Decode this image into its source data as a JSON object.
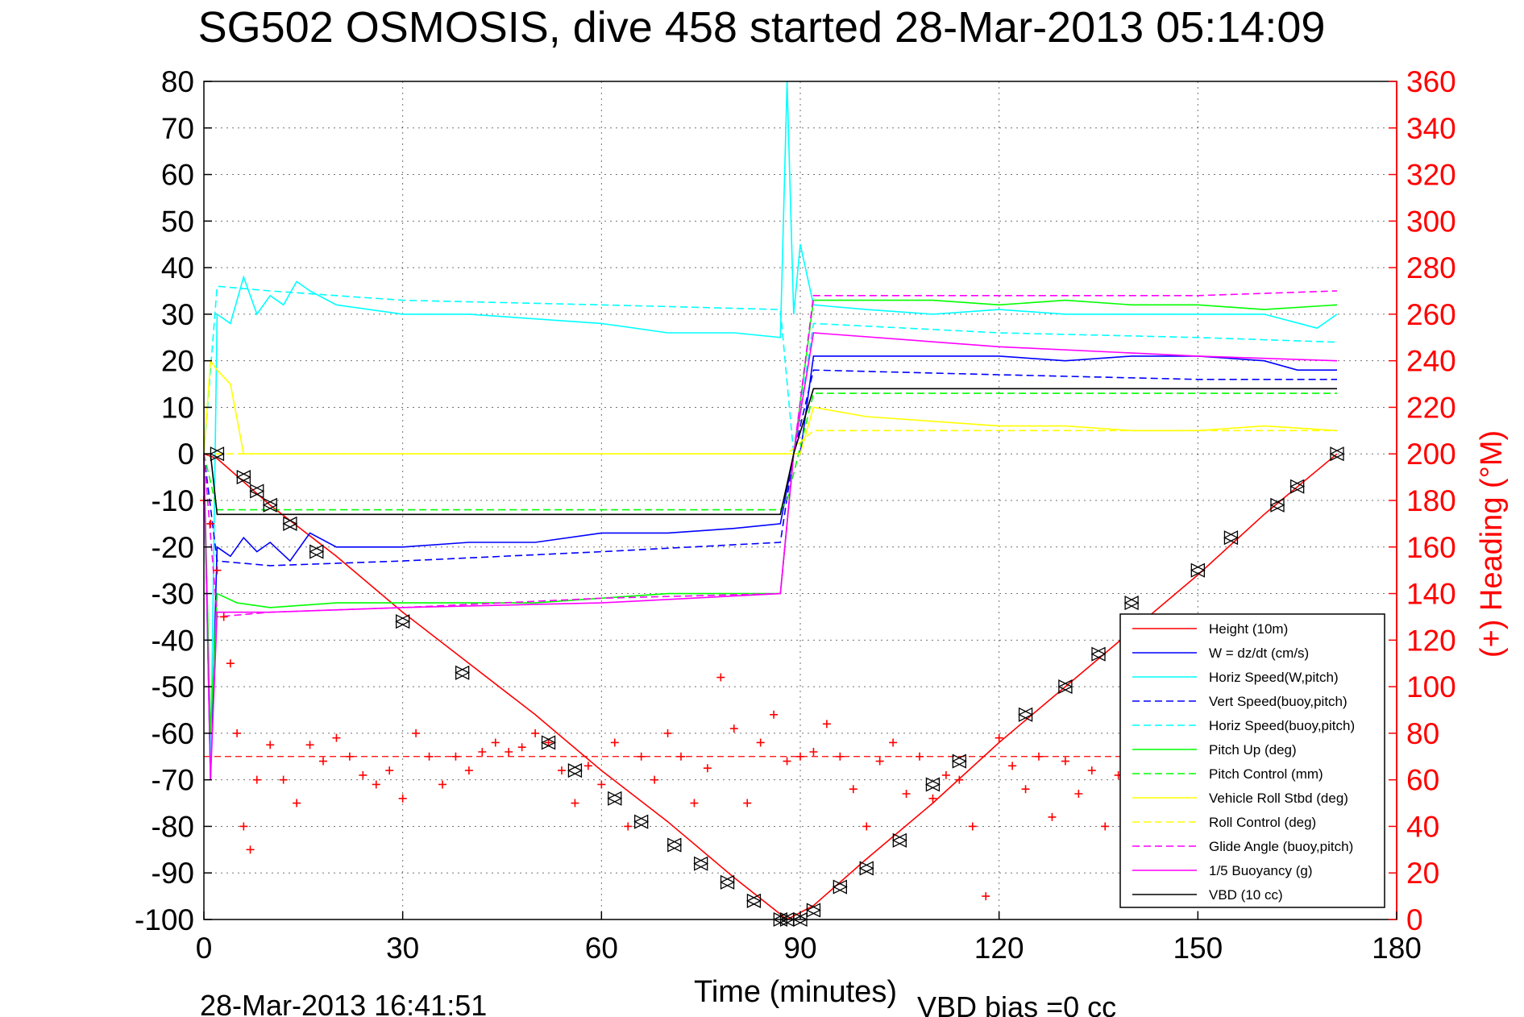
{
  "chart_data": {
    "type": "line",
    "title": "SG502 OSMOSIS, dive 458 started 28-Mar-2013 05:14:09",
    "xlabel": "Time (minutes)",
    "ylabel_right": "(+) Heading (°M)",
    "footer_left": "28-Mar-2013 16:41:51",
    "footer_right": "VBD bias =0 cc",
    "xlim": [
      0,
      180
    ],
    "ylim": [
      -100,
      80
    ],
    "ylim_right": [
      0,
      360
    ],
    "x_ticks": [
      0,
      30,
      60,
      90,
      120,
      150,
      180
    ],
    "y_ticks": [
      80,
      70,
      60,
      50,
      40,
      30,
      20,
      10,
      0,
      -10,
      -20,
      -30,
      -40,
      -50,
      -60,
      -70,
      -80,
      -90,
      -100
    ],
    "y_ticks_right": [
      360,
      340,
      320,
      300,
      280,
      260,
      240,
      220,
      200,
      180,
      160,
      140,
      120,
      100,
      80,
      60,
      40,
      20,
      0
    ],
    "grid": true,
    "legend_position": "lower-right",
    "colors": {
      "red": "#ff0000",
      "blue": "#0000ff",
      "cyan": "#00ffff",
      "green": "#00ff00",
      "yellow": "#ffff00",
      "magenta": "#ff00ff",
      "black": "#000000"
    },
    "series": [
      {
        "name": "Height (10m)",
        "color": "#ff0000",
        "style": "solid",
        "x": [
          0,
          2,
          10,
          20,
          30,
          40,
          50,
          60,
          70,
          80,
          88,
          92,
          100,
          110,
          120,
          130,
          140,
          150,
          160,
          171
        ],
        "y": [
          0,
          -1,
          -11,
          -22,
          -34,
          -45,
          -56,
          -68,
          -79,
          -91,
          -100,
          -97,
          -87,
          -75,
          -62,
          -50,
          -38,
          -26,
          -13,
          0
        ]
      },
      {
        "name": "W = dz/dt (cm/s)",
        "color": "#0000ff",
        "style": "solid",
        "x": [
          0,
          1,
          2,
          4,
          6,
          8,
          10,
          13,
          16,
          20,
          30,
          40,
          50,
          60,
          70,
          80,
          87,
          89,
          90,
          92,
          100,
          110,
          120,
          130,
          140,
          150,
          160,
          165,
          171
        ],
        "y": [
          0,
          -70,
          -20,
          -22,
          -18,
          -21,
          -19,
          -23,
          -17,
          -20,
          -20,
          -19,
          -19,
          -17,
          -17,
          -16,
          -15,
          0,
          0,
          21,
          21,
          21,
          21,
          20,
          21,
          21,
          20,
          18,
          18
        ]
      },
      {
        "name": "Horiz Speed(W,pitch)",
        "color": "#00ffff",
        "style": "solid",
        "x": [
          0,
          1,
          2,
          4,
          6,
          8,
          10,
          12,
          14,
          16,
          20,
          30,
          40,
          50,
          60,
          70,
          80,
          87,
          88,
          89,
          90,
          92,
          100,
          110,
          120,
          130,
          140,
          150,
          160,
          168,
          171
        ],
        "y": [
          0,
          -70,
          30,
          28,
          38,
          30,
          34,
          32,
          37,
          35,
          32,
          30,
          30,
          29,
          28,
          26,
          26,
          25,
          80,
          30,
          45,
          32,
          31,
          30,
          31,
          30,
          30,
          30,
          30,
          27,
          30
        ]
      },
      {
        "name": "Vert Speed(buoy,pitch)",
        "color": "#0000ff",
        "style": "dashed",
        "x": [
          0,
          2,
          10,
          30,
          60,
          87,
          89,
          92,
          120,
          150,
          171
        ],
        "y": [
          0,
          -23,
          -24,
          -23,
          -21,
          -19,
          0,
          18,
          17,
          16,
          16
        ]
      },
      {
        "name": "Horiz Speed(buoy,pitch)",
        "color": "#00ffff",
        "style": "dashed",
        "x": [
          0,
          2,
          10,
          30,
          60,
          87,
          89,
          92,
          120,
          150,
          171
        ],
        "y": [
          0,
          36,
          35,
          33,
          32,
          31,
          0,
          28,
          26,
          25,
          24
        ]
      },
      {
        "name": "Pitch Up (deg)",
        "color": "#00ff00",
        "style": "solid",
        "x": [
          0,
          1,
          2,
          5,
          10,
          20,
          30,
          40,
          50,
          60,
          70,
          80,
          87,
          89,
          92,
          100,
          110,
          120,
          130,
          140,
          150,
          160,
          171
        ],
        "y": [
          0,
          -60,
          -30,
          -32,
          -33,
          -32,
          -32,
          -32,
          -32,
          -31,
          -30,
          -30,
          -30,
          0,
          33,
          33,
          33,
          32,
          33,
          32,
          32,
          31,
          32
        ]
      },
      {
        "name": "Pitch Control (mm)",
        "color": "#00ff00",
        "style": "dashed",
        "x": [
          0,
          2,
          87,
          88,
          92,
          171
        ],
        "y": [
          0,
          -12,
          -12,
          -10,
          13,
          13
        ]
      },
      {
        "name": "Vehicle Roll Stbd (deg)",
        "color": "#ffff00",
        "style": "solid",
        "x": [
          0,
          1,
          2,
          4,
          6,
          8,
          10,
          20,
          30,
          40,
          50,
          60,
          70,
          80,
          87,
          90,
          92,
          100,
          110,
          120,
          130,
          140,
          150,
          160,
          171
        ],
        "y": [
          0,
          20,
          18,
          15,
          0,
          0,
          0,
          0,
          0,
          0,
          0,
          0,
          0,
          0,
          0,
          0,
          10,
          8,
          7,
          6,
          6,
          5,
          5,
          6,
          5
        ]
      },
      {
        "name": "Roll Control (deg)",
        "color": "#ffff00",
        "style": "dashed",
        "x": [
          0,
          2,
          87,
          88,
          92,
          171
        ],
        "y": [
          0,
          0,
          0,
          0,
          5,
          5
        ]
      },
      {
        "name": "Glide Angle (buoy,pitch)",
        "color": "#ff00ff",
        "style": "dashed",
        "x": [
          0,
          2,
          10,
          30,
          60,
          87,
          89,
          92,
          120,
          150,
          171
        ],
        "y": [
          0,
          -35,
          -34,
          -33,
          -31,
          -30,
          0,
          34,
          34,
          34,
          35
        ]
      },
      {
        "name": "1/5 Buoyancy (g)",
        "color": "#ff00ff",
        "style": "solid",
        "x": [
          0,
          1,
          2,
          10,
          30,
          60,
          87,
          89,
          92,
          120,
          150,
          171
        ],
        "y": [
          0,
          -70,
          -34,
          -34,
          -33,
          -32,
          -30,
          0,
          26,
          23,
          21,
          20
        ]
      },
      {
        "name": "VBD (10 cc)",
        "color": "#000000",
        "style": "solid",
        "x": [
          0,
          1,
          2,
          87,
          89,
          92,
          171
        ],
        "y": [
          0,
          0,
          -13,
          -13,
          0,
          14,
          14
        ]
      },
      {
        "name": "(+) Heading (°M)",
        "color": "#ff0000",
        "style": "plus-markers",
        "axis": "right",
        "x": [
          0,
          1,
          2,
          3,
          4,
          5,
          6,
          7,
          8,
          10,
          12,
          14,
          16,
          18,
          20,
          22,
          24,
          26,
          28,
          30,
          32,
          34,
          36,
          38,
          40,
          42,
          44,
          46,
          48,
          50,
          52,
          54,
          56,
          58,
          60,
          62,
          64,
          66,
          68,
          70,
          72,
          74,
          76,
          78,
          80,
          82,
          84,
          86,
          88,
          90,
          92,
          94,
          96,
          98,
          100,
          102,
          104,
          106,
          108,
          110,
          112,
          114,
          116,
          118,
          120,
          122,
          124,
          126,
          128,
          130,
          132,
          134,
          136,
          138,
          140
        ],
        "y": [
          180,
          170,
          150,
          130,
          110,
          80,
          40,
          30,
          60,
          75,
          60,
          50,
          75,
          68,
          78,
          70,
          62,
          58,
          64,
          52,
          80,
          70,
          58,
          70,
          64,
          72,
          76,
          72,
          74,
          80,
          76,
          64,
          50,
          66,
          58,
          76,
          40,
          70,
          60,
          80,
          70,
          50,
          65,
          104,
          82,
          50,
          76,
          88,
          68,
          70,
          72,
          84,
          70,
          56,
          40,
          68,
          76,
          54,
          70,
          52,
          62,
          60,
          40,
          10,
          78,
          66,
          56,
          70,
          44,
          68,
          54,
          64,
          40,
          62,
          58
        ]
      }
    ],
    "heading_reference_y_right": 70,
    "vbd_markers": {
      "x": [
        2,
        6,
        8,
        10,
        13,
        17,
        30,
        39,
        52,
        56,
        62,
        66,
        71,
        75,
        79,
        83,
        87,
        88,
        90,
        92,
        96,
        100,
        105,
        110,
        114,
        124,
        130,
        135,
        140,
        150,
        155,
        162,
        165,
        171
      ],
      "y": [
        0,
        -5,
        -8,
        -11,
        -15,
        -21,
        -36,
        -47,
        -62,
        -68,
        -74,
        -79,
        -84,
        -88,
        -92,
        -96,
        -100,
        -100,
        -100,
        -98,
        -93,
        -89,
        -83,
        -71,
        -66,
        -56,
        -50,
        -43,
        -32,
        -25,
        -18,
        -11,
        -7,
        0
      ]
    },
    "legend": [
      "Height (10m)",
      "W = dz/dt (cm/s)",
      "Horiz Speed(W,pitch)",
      "Vert Speed(buoy,pitch)",
      "Horiz Speed(buoy,pitch)",
      "Pitch Up (deg)",
      "Pitch Control (mm)",
      "Vehicle Roll Stbd (deg)",
      "Roll Control (deg)",
      "Glide Angle (buoy,pitch)",
      "1/5 Buoyancy (g)",
      "VBD (10 cc)"
    ]
  }
}
